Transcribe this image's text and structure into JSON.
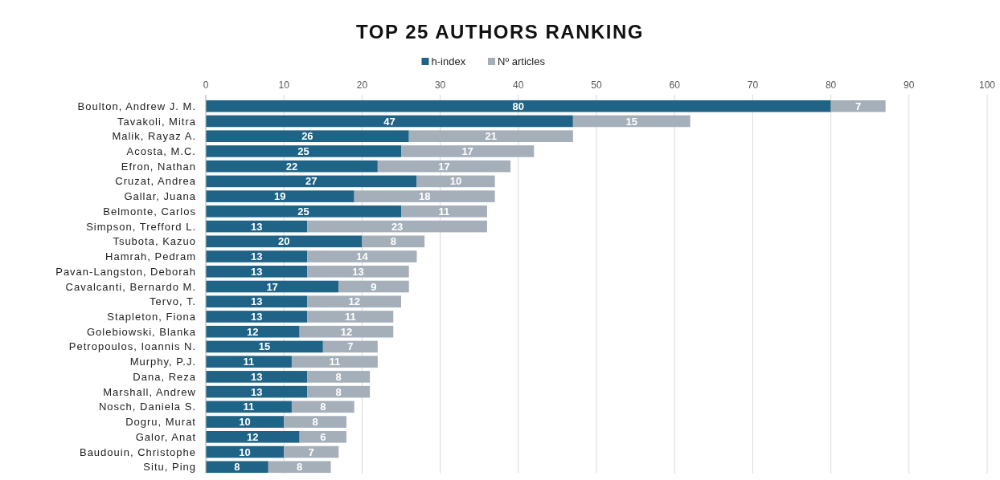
{
  "chart_data": {
    "type": "bar",
    "title": "TOP 25 AUTHORS RANKING",
    "orientation": "horizontal",
    "stacked": true,
    "legend": "top",
    "grid": "x",
    "data_labels": true,
    "categories": [
      "Boulton, Andrew J. M.",
      "Tavakoli, Mitra",
      "Malik, Rayaz A.",
      "Acosta, M.C.",
      "Efron, Nathan",
      "Cruzat, Andrea",
      "Gallar, Juana",
      "Belmonte, Carlos",
      "Simpson, Trefford L.",
      "Tsubota, Kazuo",
      "Hamrah, Pedram",
      "Pavan-Langston, Deborah",
      "Cavalcanti, Bernardo M.",
      "Tervo, T.",
      "Stapleton, Fiona",
      "Golebiowski, Blanka",
      "Petropoulos, Ioannis N.",
      "Murphy, P.J.",
      "Dana, Reza",
      "Marshall, Andrew",
      "Nosch, Daniela S.",
      "Dogru, Murat",
      "Galor, Anat",
      "Baudouin, Christophe",
      "Situ, Ping"
    ],
    "series": [
      {
        "name": "h-index",
        "color": "#1f6386",
        "values": [
          80,
          47,
          26,
          25,
          22,
          27,
          19,
          25,
          13,
          20,
          13,
          13,
          17,
          13,
          13,
          12,
          15,
          11,
          13,
          13,
          11,
          10,
          12,
          10,
          8
        ]
      },
      {
        "name": "Nº articles",
        "color": "#a5afba",
        "values": [
          7,
          15,
          21,
          17,
          17,
          10,
          18,
          11,
          23,
          8,
          14,
          13,
          9,
          12,
          11,
          12,
          7,
          11,
          8,
          8,
          8,
          8,
          6,
          7,
          8
        ]
      }
    ],
    "xlim": [
      0,
      100
    ],
    "xticks": [
      0,
      10,
      20,
      30,
      40,
      50,
      60,
      70,
      80,
      90,
      100
    ]
  }
}
